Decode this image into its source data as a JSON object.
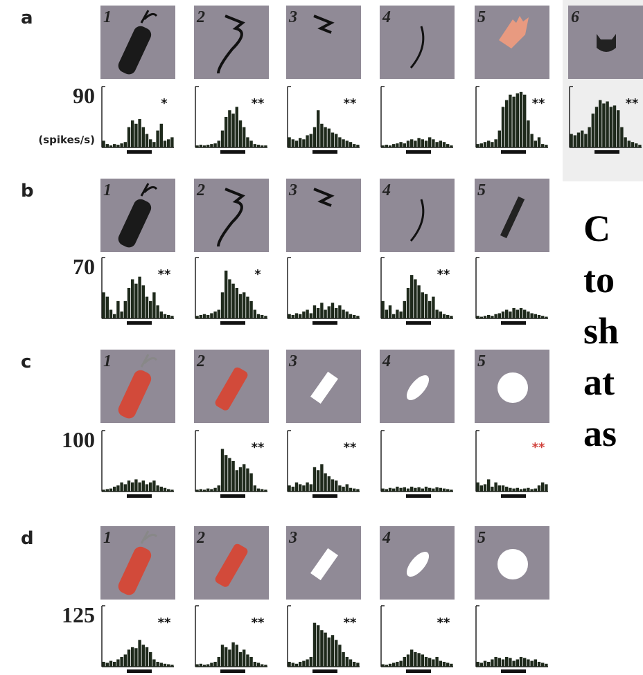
{
  "panels": [
    {
      "label": "a",
      "scale": 90,
      "unit": "(spikes/s)",
      "cells": [
        {
          "number": "1",
          "stars": "*",
          "histogram": [
            10,
            5,
            3,
            5,
            4,
            6,
            8,
            30,
            40,
            35,
            42,
            30,
            20,
            12,
            8,
            25,
            35,
            10,
            12,
            15
          ]
        },
        {
          "number": "2",
          "stars": "**",
          "histogram": [
            3,
            4,
            3,
            4,
            5,
            6,
            10,
            25,
            45,
            55,
            50,
            60,
            40,
            30,
            15,
            10,
            5,
            4,
            3,
            3
          ]
        },
        {
          "number": "3",
          "stars": "**",
          "histogram": [
            15,
            12,
            10,
            14,
            12,
            18,
            20,
            30,
            55,
            35,
            30,
            28,
            22,
            20,
            15,
            12,
            10,
            8,
            5,
            4
          ]
        },
        {
          "number": "4",
          "histogram": [
            3,
            4,
            3,
            5,
            6,
            8,
            6,
            10,
            12,
            10,
            14,
            12,
            10,
            15,
            12,
            8,
            10,
            8,
            5,
            3
          ]
        },
        {
          "number": "5",
          "stars": "**",
          "histogram": [
            5,
            6,
            8,
            10,
            8,
            12,
            25,
            60,
            70,
            78,
            75,
            80,
            82,
            78,
            40,
            20,
            10,
            15,
            5,
            4
          ]
        },
        {
          "number": "6",
          "stars": "**",
          "histogram": [
            20,
            18,
            22,
            25,
            20,
            30,
            50,
            60,
            70,
            65,
            68,
            60,
            62,
            55,
            30,
            15,
            10,
            8,
            6,
            4
          ]
        }
      ]
    },
    {
      "label": "b",
      "scale": 70,
      "cells": [
        {
          "number": "1",
          "stars": "**",
          "histogram": [
            30,
            25,
            10,
            5,
            20,
            8,
            20,
            35,
            45,
            40,
            48,
            38,
            25,
            20,
            30,
            15,
            8,
            5,
            4,
            3
          ]
        },
        {
          "number": "2",
          "stars": "*",
          "histogram": [
            3,
            4,
            5,
            4,
            6,
            8,
            10,
            30,
            55,
            45,
            40,
            35,
            28,
            30,
            25,
            20,
            10,
            5,
            4,
            3
          ]
        },
        {
          "number": "3",
          "histogram": [
            5,
            4,
            6,
            5,
            8,
            10,
            6,
            15,
            12,
            18,
            10,
            14,
            18,
            12,
            15,
            10,
            8,
            5,
            4,
            3
          ]
        },
        {
          "number": "4",
          "stars": "**",
          "histogram": [
            20,
            10,
            15,
            5,
            10,
            8,
            20,
            35,
            50,
            45,
            38,
            30,
            28,
            20,
            25,
            10,
            8,
            5,
            4,
            3
          ]
        },
        {
          "number": "5",
          "histogram": [
            3,
            2,
            3,
            4,
            3,
            5,
            6,
            8,
            10,
            8,
            12,
            10,
            12,
            10,
            8,
            6,
            5,
            4,
            3,
            2
          ]
        }
      ]
    },
    {
      "label": "c",
      "scale": 100,
      "cells": [
        {
          "number": "1",
          "histogram": [
            3,
            4,
            5,
            8,
            10,
            15,
            12,
            18,
            15,
            20,
            15,
            18,
            12,
            15,
            18,
            10,
            8,
            6,
            4,
            3
          ]
        },
        {
          "number": "2",
          "stars": "**",
          "histogram": [
            3,
            4,
            3,
            5,
            4,
            6,
            10,
            70,
            60,
            55,
            50,
            35,
            40,
            45,
            38,
            30,
            10,
            5,
            4,
            3
          ]
        },
        {
          "number": "3",
          "stars": "**",
          "histogram": [
            10,
            8,
            15,
            12,
            10,
            15,
            12,
            40,
            35,
            45,
            30,
            25,
            20,
            18,
            10,
            8,
            12,
            6,
            5,
            4
          ]
        },
        {
          "number": "4",
          "histogram": [
            5,
            4,
            6,
            5,
            8,
            6,
            7,
            5,
            8,
            6,
            7,
            5,
            8,
            6,
            5,
            7,
            6,
            5,
            4,
            3
          ]
        },
        {
          "number": "5",
          "stars": "**",
          "stars_color": "#d0403a",
          "histogram": [
            15,
            10,
            12,
            20,
            8,
            15,
            10,
            10,
            8,
            6,
            5,
            6,
            4,
            5,
            6,
            4,
            5,
            10,
            15,
            12
          ]
        }
      ]
    },
    {
      "label": "d",
      "scale": 125,
      "cells": [
        {
          "number": "1",
          "stars": "**",
          "histogram": [
            10,
            8,
            12,
            10,
            15,
            20,
            25,
            35,
            40,
            38,
            55,
            45,
            40,
            30,
            15,
            10,
            8,
            6,
            5,
            4
          ]
        },
        {
          "number": "2",
          "stars": "**",
          "histogram": [
            5,
            6,
            4,
            5,
            8,
            10,
            20,
            45,
            40,
            35,
            50,
            45,
            30,
            35,
            25,
            20,
            10,
            8,
            5,
            4
          ]
        },
        {
          "number": "3",
          "stars": "**",
          "histogram": [
            10,
            8,
            6,
            10,
            12,
            15,
            20,
            90,
            85,
            75,
            70,
            60,
            65,
            55,
            45,
            30,
            20,
            15,
            10,
            8
          ]
        },
        {
          "number": "4",
          "stars": "**",
          "histogram": [
            5,
            4,
            6,
            8,
            10,
            12,
            20,
            25,
            35,
            30,
            28,
            25,
            20,
            18,
            15,
            20,
            12,
            10,
            8,
            6
          ]
        },
        {
          "number": "5",
          "histogram": [
            10,
            8,
            12,
            10,
            15,
            20,
            18,
            15,
            20,
            18,
            12,
            15,
            20,
            18,
            15,
            12,
            15,
            10,
            8,
            6
          ]
        }
      ]
    }
  ],
  "side_text": [
    "C",
    "to",
    "sh",
    "at",
    "as"
  ]
}
